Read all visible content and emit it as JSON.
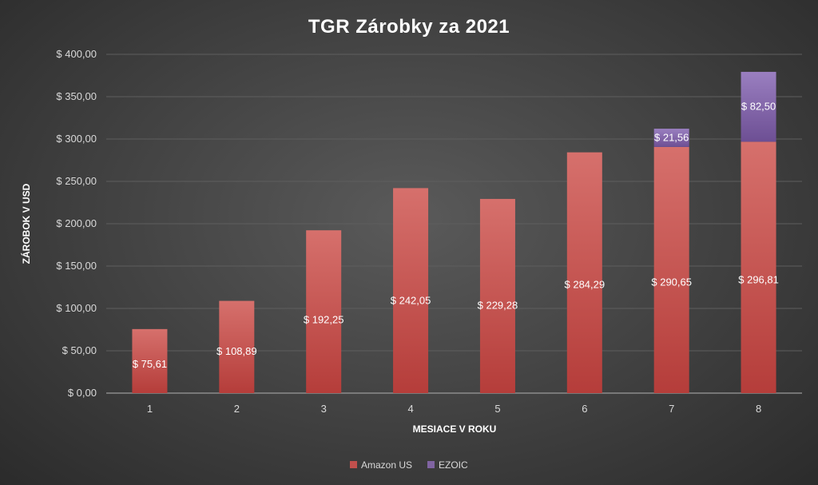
{
  "chart_data": {
    "type": "bar",
    "stacked": true,
    "title": "TGR Zárobky za 2021",
    "xlabel": "MESIACE V ROKU",
    "ylabel": "ZÁROBOK V USD",
    "categories": [
      "1",
      "2",
      "3",
      "4",
      "5",
      "6",
      "7",
      "8"
    ],
    "ylim": [
      0,
      400
    ],
    "yticks": [
      0,
      50,
      100,
      150,
      200,
      250,
      300,
      350,
      400
    ],
    "ytick_labels": [
      "$ 0,00",
      "$ 50,00",
      "$ 100,00",
      "$ 150,00",
      "$ 200,00",
      "$ 250,00",
      "$ 300,00",
      "$ 350,00",
      "$ 400,00"
    ],
    "grid": true,
    "legend_position": "bottom",
    "series": [
      {
        "name": "Amazon US",
        "color": "#c0504d",
        "values": [
          75.61,
          108.89,
          192.25,
          242.05,
          229.28,
          284.29,
          290.65,
          296.81
        ],
        "labels": [
          "$ 75,61",
          "$ 108,89",
          "$ 192,25",
          "$ 242,05",
          "$ 229,28",
          "$ 284,29",
          "$ 290,65",
          "$ 296,81"
        ]
      },
      {
        "name": "EZOIC",
        "color": "#8064a2",
        "values": [
          0,
          0,
          0,
          0,
          0,
          0,
          21.56,
          82.5
        ],
        "labels": [
          "",
          "",
          "",
          "",
          "",
          "",
          "$ 21,56",
          "$ 82,50"
        ]
      }
    ]
  }
}
